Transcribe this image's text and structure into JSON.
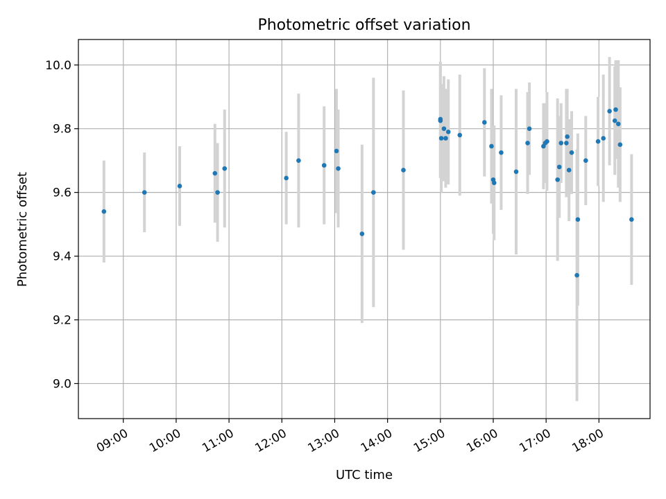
{
  "chart_data": {
    "type": "scatter",
    "title": "Photometric offset variation",
    "xlabel": "UTC time",
    "ylabel": "Photometric offset",
    "grid": true,
    "xlim": [
      "08:09",
      "18:58"
    ],
    "ylim": [
      8.89,
      10.08
    ],
    "x_ticks": [
      "09:00",
      "10:00",
      "11:00",
      "12:00",
      "13:00",
      "14:00",
      "15:00",
      "16:00",
      "17:00",
      "18:00"
    ],
    "y_ticks": [
      "9.0",
      "9.2",
      "9.4",
      "9.6",
      "9.8",
      "10.0"
    ],
    "colors": {
      "points": "#1f77b4",
      "errorbars": "#d3d3d3"
    },
    "series": [
      {
        "x": [
          "08:38",
          "09:24",
          "10:04",
          "10:44",
          "10:47",
          "10:55",
          "12:05",
          "12:19",
          "12:48",
          "13:02",
          "13:04",
          "13:31",
          "13:44",
          "14:18",
          "15:00",
          "15:00",
          "15:01",
          "15:04",
          "15:06",
          "15:09",
          "15:22",
          "15:50",
          "15:58",
          "16:00",
          "16:01",
          "16:09",
          "16:26",
          "16:39",
          "16:41",
          "16:57",
          "16:59",
          "17:01",
          "17:13",
          "17:15",
          "17:17",
          "17:23",
          "17:24",
          "17:26",
          "17:29",
          "17:35",
          "17:36",
          "17:45",
          "17:59",
          "18:05",
          "18:12",
          "18:18",
          "18:19",
          "18:22",
          "18:24",
          "18:37"
        ],
        "y": [
          9.54,
          9.6,
          9.62,
          9.66,
          9.6,
          9.675,
          9.645,
          9.7,
          9.685,
          9.73,
          9.675,
          9.47,
          9.6,
          9.67,
          9.83,
          9.825,
          9.77,
          9.8,
          9.77,
          9.79,
          9.78,
          9.82,
          9.745,
          9.64,
          9.63,
          9.725,
          9.665,
          9.755,
          9.8,
          9.745,
          9.755,
          9.76,
          9.64,
          9.68,
          9.755,
          9.755,
          9.775,
          9.67,
          9.725,
          9.34,
          9.515,
          9.7,
          9.76,
          9.77,
          9.855,
          9.825,
          9.86,
          9.815,
          9.75,
          9.515
        ],
        "err": [
          0.16,
          0.125,
          0.125,
          0.155,
          0.155,
          0.185,
          0.145,
          0.21,
          0.185,
          0.195,
          0.185,
          0.28,
          0.36,
          0.25,
          0.18,
          0.18,
          0.17,
          0.165,
          0.155,
          0.165,
          0.19,
          0.17,
          0.18,
          0.17,
          0.18,
          0.18,
          0.26,
          0.16,
          0.145,
          0.135,
          0.125,
          0.155,
          0.255,
          0.16,
          0.125,
          0.17,
          0.15,
          0.16,
          0.13,
          0.395,
          0.27,
          0.14,
          0.14,
          0.2,
          0.17,
          0.17,
          0.155,
          0.2,
          0.18,
          0.205
        ]
      }
    ]
  }
}
